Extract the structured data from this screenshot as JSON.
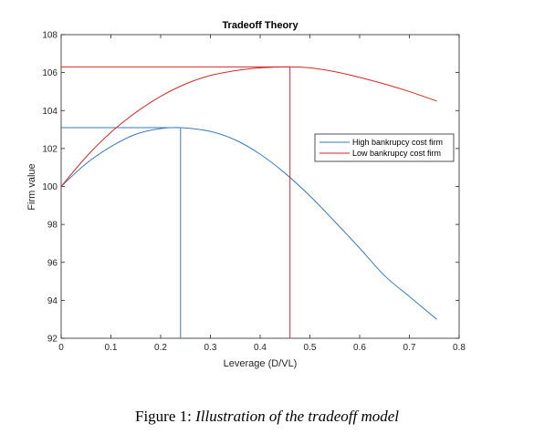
{
  "chart_data": {
    "type": "line",
    "title": "Tradeoff Theory",
    "xlabel": "Leverage (D/VL)",
    "ylabel": "Firm value",
    "xlim": [
      0,
      0.8
    ],
    "ylim": [
      92,
      108
    ],
    "xticks": [
      0,
      0.1,
      0.2,
      0.3,
      0.4,
      0.5,
      0.6,
      0.7,
      0.8
    ],
    "xtick_labels": [
      "0",
      "0.1",
      "0.2",
      "0.3",
      "0.4",
      "0.5",
      "0.6",
      "0.7",
      "0.8"
    ],
    "yticks": [
      92,
      94,
      96,
      98,
      100,
      102,
      104,
      106,
      108
    ],
    "ytick_labels": [
      "92",
      "94",
      "96",
      "98",
      "100",
      "102",
      "104",
      "106",
      "108"
    ],
    "grid": false,
    "legend_position": "right",
    "series": [
      {
        "name": "High bankrupcy cost firm",
        "color": "#3b7bbf",
        "x": [
          0,
          0.05,
          0.1,
          0.15,
          0.2,
          0.24,
          0.3,
          0.35,
          0.4,
          0.45,
          0.5,
          0.55,
          0.6,
          0.65,
          0.7,
          0.755
        ],
        "y": [
          100,
          101.2,
          102.1,
          102.75,
          103.05,
          103.1,
          102.9,
          102.45,
          101.7,
          100.7,
          99.5,
          98.15,
          96.75,
          95.3,
          94.2,
          93.0
        ],
        "max_x": 0.24,
        "max_y": 103.1
      },
      {
        "name": "Low bankrupcy cost firm",
        "color": "#d62728",
        "x": [
          0,
          0.05,
          0.1,
          0.15,
          0.2,
          0.25,
          0.3,
          0.35,
          0.4,
          0.46,
          0.5,
          0.55,
          0.6,
          0.65,
          0.7,
          0.755
        ],
        "y": [
          100,
          101.55,
          102.85,
          103.9,
          104.75,
          105.4,
          105.85,
          106.1,
          106.25,
          106.3,
          106.25,
          106.05,
          105.75,
          105.4,
          105.0,
          104.5
        ],
        "max_x": 0.46,
        "max_y": 106.3
      }
    ]
  },
  "caption": {
    "prefix": "Figure 1:",
    "text": "Illustration of the tradeoff model"
  }
}
